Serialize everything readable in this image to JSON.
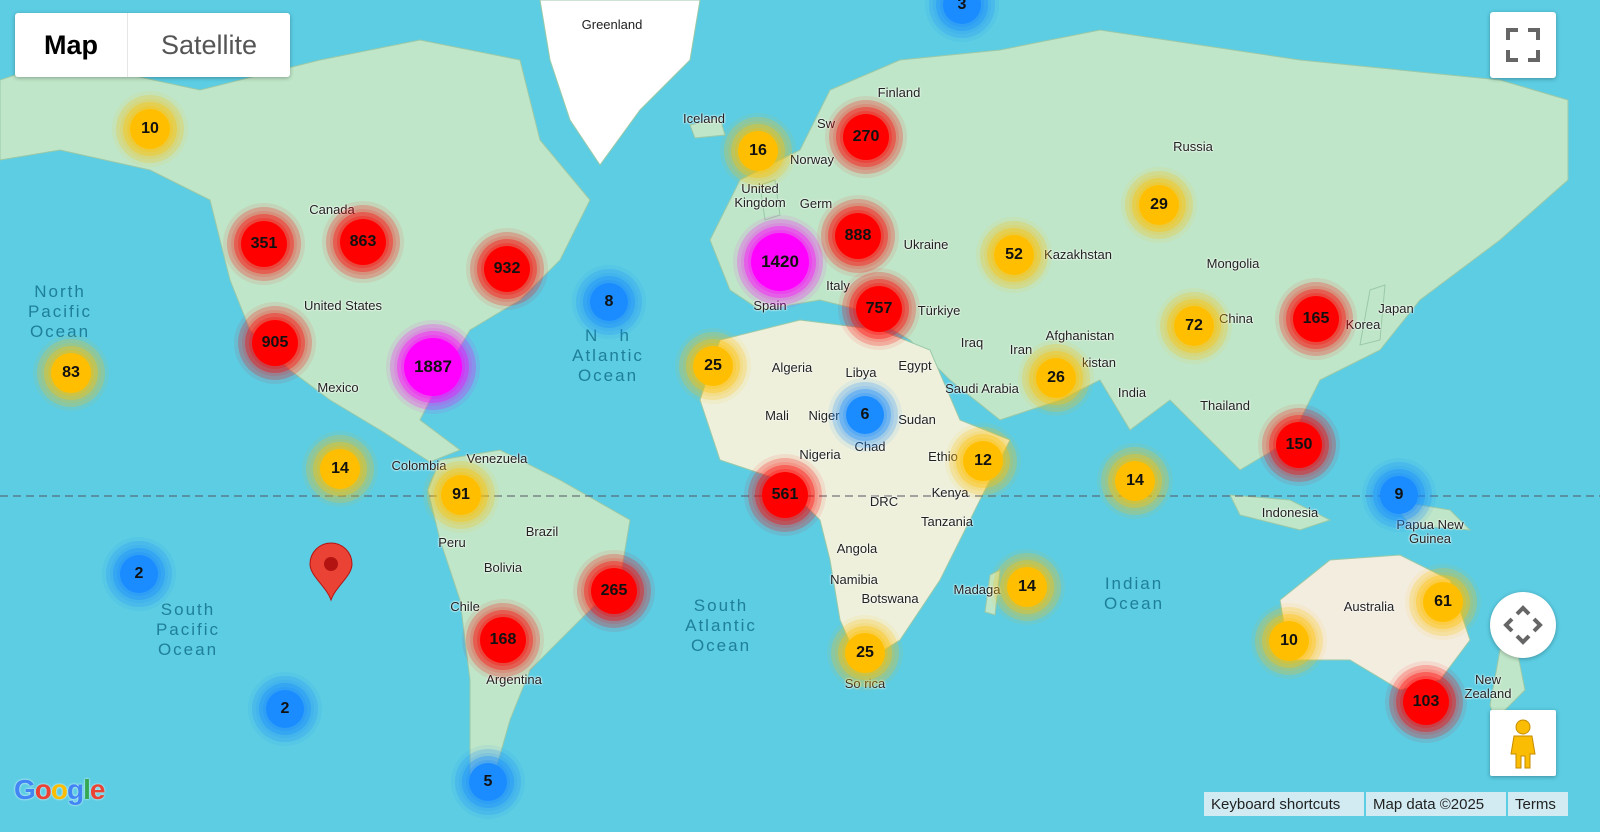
{
  "map_type_control": {
    "map": "Map",
    "satellite": "Satellite",
    "selected": "Map"
  },
  "controls": {
    "fullscreen": "fullscreen-icon",
    "pan": "pan-arrows-icon",
    "street_view": "pegman-icon"
  },
  "attribution": {
    "keyboard": "Keyboard shortcuts",
    "map_data": "Map data ©2025",
    "terms": "Terms",
    "logo": "Google"
  },
  "colors": {
    "ocean": "#5ccde3",
    "land": "#bfe6c8",
    "small": "#ffbf00",
    "medium": "#ff0000",
    "large": "#ff00ff",
    "tiny": "#1a8cff",
    "marker": "#ea4335"
  },
  "places": [
    "Greenland",
    "Iceland",
    "Finland",
    "Sw",
    "Norway",
    "United Kingdom",
    "Germ",
    "Ukraine",
    "Russia",
    "Kazakhstan",
    "Mongolia",
    "Canada",
    "United States",
    "Mexico",
    "Spain",
    "Italy",
    "Türkiye",
    "Japan",
    "Korea",
    "China",
    "Iraq",
    "Iran",
    "Afghanistan",
    "kistan",
    "India",
    "Algeria",
    "Libya",
    "Egypt",
    "Saudi Arabia",
    "Mali",
    "Niger",
    "Chad",
    "Sudan",
    "Thailand",
    "Ethio",
    "Nigeria",
    "Kenya",
    "DRC",
    "Tanzania",
    "Venezuela",
    "Colombia",
    "Peru",
    "Brazil",
    "Bolivia",
    "Chile",
    "Argentina",
    "Angola",
    "Namibia",
    "Botswana",
    "So   rica",
    "Madaga",
    "Indonesia",
    "Papua New Guinea",
    "Australia",
    "New Zealand"
  ],
  "oceans": [
    "North\nPacific\nOcean",
    "N   h\nAtlantic\nOcean",
    "South\nPacific\nOcean",
    "South\nAtlantic\nOcean",
    "Indian\nOcean"
  ],
  "clusters": [
    {
      "count": "10",
      "tier": "small"
    },
    {
      "count": "16",
      "tier": "small"
    },
    {
      "count": "270",
      "tier": "medium"
    },
    {
      "count": "3",
      "tier": "tiny"
    },
    {
      "count": "351",
      "tier": "medium"
    },
    {
      "count": "863",
      "tier": "medium"
    },
    {
      "count": "932",
      "tier": "medium"
    },
    {
      "count": "1420",
      "tier": "large"
    },
    {
      "count": "888",
      "tier": "medium"
    },
    {
      "count": "52",
      "tier": "small"
    },
    {
      "count": "29",
      "tier": "small"
    },
    {
      "count": "8",
      "tier": "tiny"
    },
    {
      "count": "905",
      "tier": "medium"
    },
    {
      "count": "1887",
      "tier": "large"
    },
    {
      "count": "757",
      "tier": "medium"
    },
    {
      "count": "72",
      "tier": "small"
    },
    {
      "count": "165",
      "tier": "medium"
    },
    {
      "count": "83",
      "tier": "small"
    },
    {
      "count": "25",
      "tier": "small"
    },
    {
      "count": "6",
      "tier": "tiny"
    },
    {
      "count": "26",
      "tier": "small"
    },
    {
      "count": "14",
      "tier": "small"
    },
    {
      "count": "91",
      "tier": "small"
    },
    {
      "count": "561",
      "tier": "medium"
    },
    {
      "count": "12",
      "tier": "small"
    },
    {
      "count": "14",
      "tier": "small"
    },
    {
      "count": "150",
      "tier": "medium"
    },
    {
      "count": "9",
      "tier": "tiny"
    },
    {
      "count": "2",
      "tier": "tiny"
    },
    {
      "count": "265",
      "tier": "medium"
    },
    {
      "count": "168",
      "tier": "medium"
    },
    {
      "count": "14",
      "tier": "small"
    },
    {
      "count": "61",
      "tier": "small"
    },
    {
      "count": "10",
      "tier": "small"
    },
    {
      "count": "25",
      "tier": "small"
    },
    {
      "count": "2",
      "tier": "tiny"
    },
    {
      "count": "103",
      "tier": "medium"
    },
    {
      "count": "5",
      "tier": "tiny"
    }
  ]
}
